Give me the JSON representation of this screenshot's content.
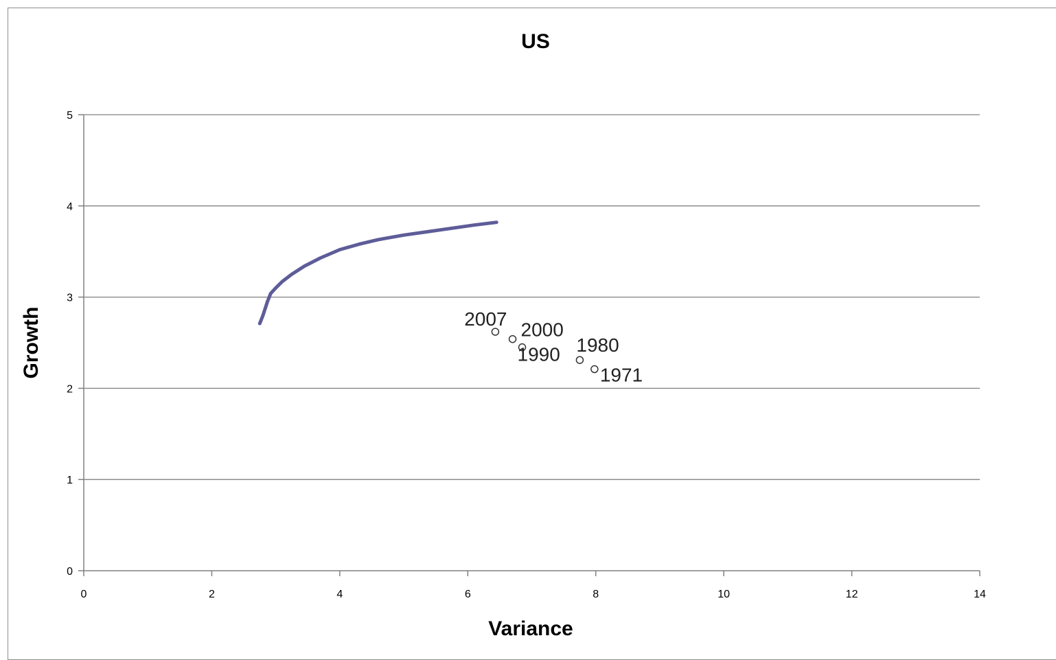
{
  "chart_data": {
    "type": "scatter",
    "title": "US",
    "xlabel": "Variance",
    "ylabel": "Growth",
    "xlim": [
      0,
      14
    ],
    "ylim": [
      0,
      5
    ],
    "x_ticks": [
      "0",
      "2",
      "4",
      "6",
      "8",
      "10",
      "12",
      "14"
    ],
    "y_ticks": [
      "0",
      "1",
      "2",
      "3",
      "4",
      "5"
    ],
    "grid": true,
    "legend": "none",
    "points": [
      {
        "label": "2007",
        "x": 6.43,
        "y": 2.62
      },
      {
        "label": "2000",
        "x": 6.7,
        "y": 2.54
      },
      {
        "label": "1990",
        "x": 6.85,
        "y": 2.45
      },
      {
        "label": "1980",
        "x": 7.75,
        "y": 2.31
      },
      {
        "label": "1971",
        "x": 7.98,
        "y": 2.21
      }
    ],
    "curve": {
      "color": "#5e5c98",
      "x": [
        2.75,
        2.8,
        2.87,
        2.92,
        3.0,
        3.1,
        3.25,
        3.45,
        3.7,
        4.0,
        4.3,
        4.6,
        5.0,
        5.4,
        5.8,
        6.1,
        6.45
      ],
      "y": [
        2.71,
        2.8,
        2.95,
        3.04,
        3.1,
        3.17,
        3.25,
        3.34,
        3.43,
        3.52,
        3.58,
        3.63,
        3.68,
        3.72,
        3.76,
        3.79,
        3.82
      ]
    },
    "colors": {
      "curve": "#5e5c98",
      "grid": "#808080",
      "marker_edge": "#333333"
    }
  }
}
